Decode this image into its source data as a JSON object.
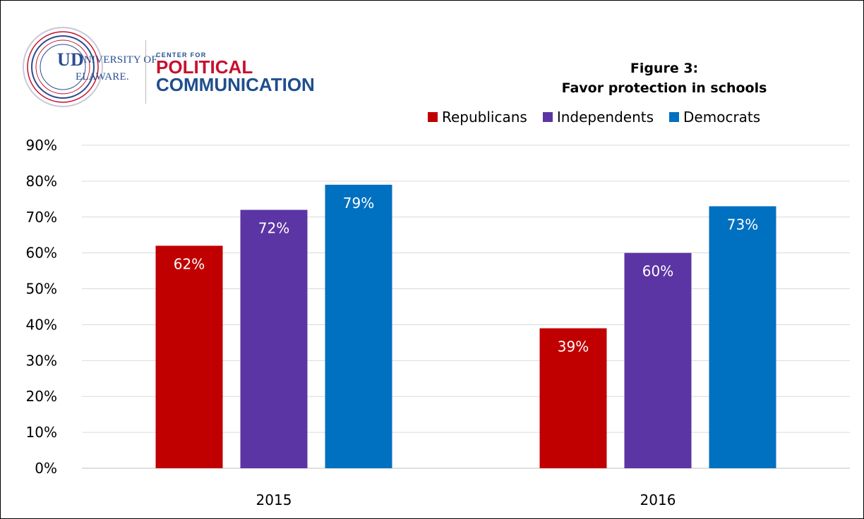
{
  "logo": {
    "university_line1": "NIVERSITY OF",
    "university_line2": "ELAWARE.",
    "monogram": "UD",
    "center_line1": "CENTER FOR",
    "center_line2": "POLITICAL",
    "center_line3": "COMMUNICATION"
  },
  "chart_data": {
    "type": "bar",
    "title": "Figure 3:",
    "subtitle": "Favor protection in schools",
    "categories": [
      "2015",
      "2016"
    ],
    "series": [
      {
        "name": "Republicans",
        "color": "#c00000",
        "values": [
          62,
          39
        ],
        "labels": [
          "62%",
          "39%"
        ]
      },
      {
        "name": "Independents",
        "color": "#5b35a3",
        "values": [
          72,
          60
        ],
        "labels": [
          "72%",
          "60%"
        ]
      },
      {
        "name": "Democrats",
        "color": "#0070c0",
        "values": [
          79,
          73
        ],
        "labels": [
          "79%",
          "73%"
        ]
      }
    ],
    "ylim": [
      0,
      90
    ],
    "yticks": [
      0,
      10,
      20,
      30,
      40,
      50,
      60,
      70,
      80,
      90
    ],
    "ytick_labels": [
      "0%",
      "10%",
      "20%",
      "30%",
      "40%",
      "50%",
      "60%",
      "70%",
      "80%",
      "90%"
    ],
    "grid": true,
    "legend_position": "top-right",
    "xlabel": "",
    "ylabel": ""
  }
}
